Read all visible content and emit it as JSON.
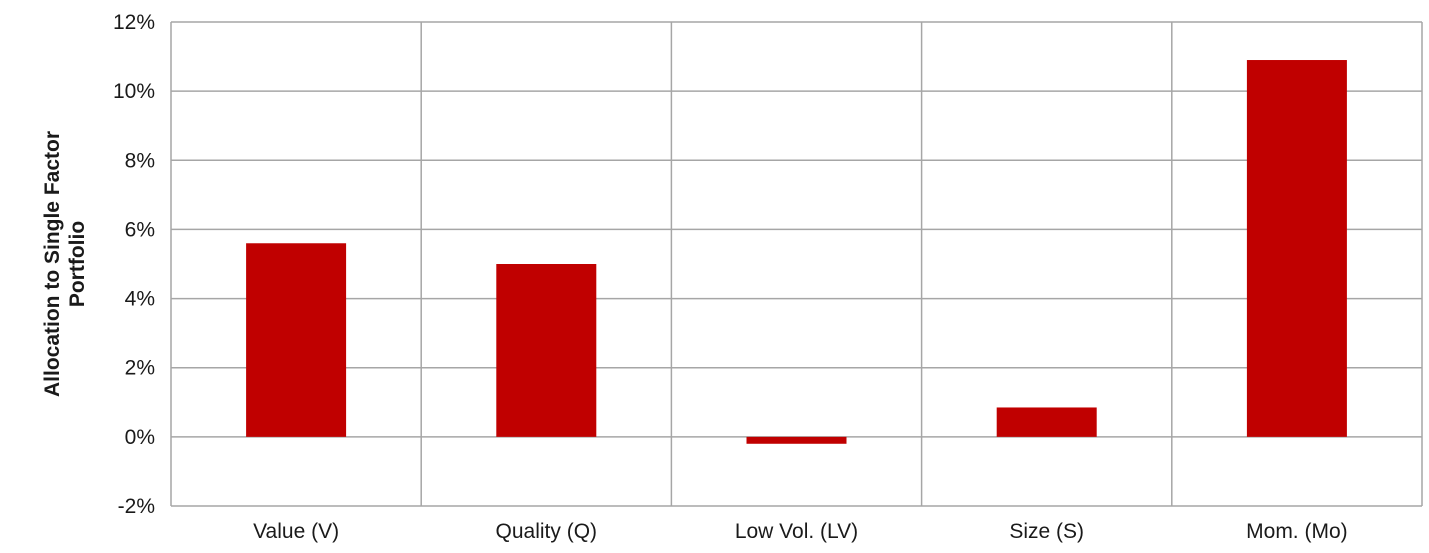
{
  "chart_data": {
    "type": "bar",
    "title": "",
    "xlabel": "",
    "ylabel_lines": [
      "Allocation to Single Factor",
      "Portfolio"
    ],
    "categories": [
      "Value (V)",
      "Quality (Q)",
      "Low Vol. (LV)",
      "Size (S)",
      "Mom. (Mo)"
    ],
    "values": [
      5.6,
      5.0,
      -0.2,
      0.85,
      10.9
    ],
    "value_unit": "%",
    "ylim": [
      -2,
      12
    ],
    "yticks": [
      -2,
      0,
      2,
      4,
      6,
      8,
      10,
      12
    ],
    "ytick_labels": [
      "-2%",
      "0%",
      "2%",
      "4%",
      "6%",
      "8%",
      "10%",
      "12%"
    ],
    "grid": true,
    "legend": "none",
    "bar_color": "#c00000",
    "grid_color": "#a6a6a6"
  }
}
